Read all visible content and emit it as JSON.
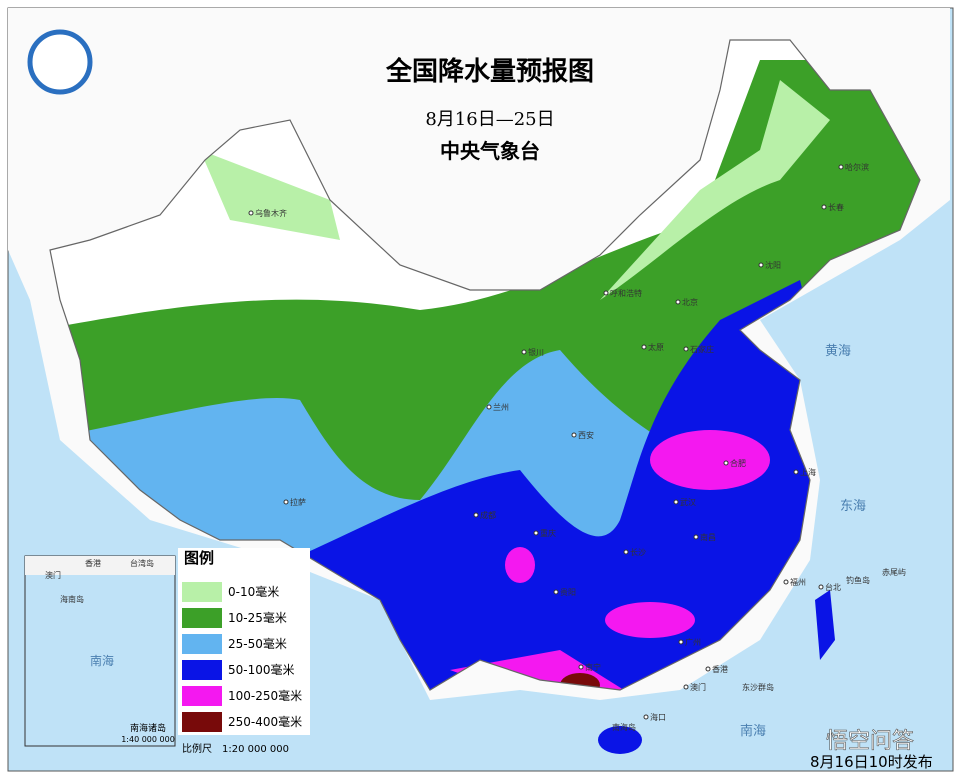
{
  "title": "全国降水量预报图",
  "period": "8月16日—25日",
  "issuer": "中央气象台",
  "legend": {
    "title": "图例",
    "items": [
      {
        "label": "0-10毫米",
        "color": "#b8f0a8"
      },
      {
        "label": "10-25毫米",
        "color": "#3ca028"
      },
      {
        "label": "25-50毫米",
        "color": "#62b4f0"
      },
      {
        "label": "50-100毫米",
        "color": "#0a14e6"
      },
      {
        "label": "100-250毫米",
        "color": "#f418f0"
      },
      {
        "label": "250-400毫米",
        "color": "#780a0a"
      }
    ]
  },
  "scale": "比例尺　1:20 000 000",
  "inset": {
    "title": "南海诸岛",
    "scale": "1:40 000 000",
    "labels": [
      "香港",
      "澳门",
      "台湾岛",
      "海南岛",
      "南海"
    ]
  },
  "cities": [
    "乌鲁木齐",
    "哈尔滨",
    "长春",
    "沈阳",
    "呼和浩特",
    "北京",
    "太原",
    "石家庄",
    "银川",
    "兰州",
    "西安",
    "拉萨",
    "重庆",
    "成都",
    "武汉",
    "合肥",
    "上海",
    "南昌",
    "长沙",
    "贵阳",
    "南宁",
    "广州",
    "福州",
    "台北",
    "海口",
    "澳门",
    "香港"
  ],
  "seas": [
    "黄海",
    "东海",
    "南海"
  ],
  "islands": [
    "钓鱼岛",
    "赤尾屿",
    "东沙群岛",
    "南海岛"
  ],
  "footer": "8月16日10时发布",
  "watermark": "悟空问答"
}
